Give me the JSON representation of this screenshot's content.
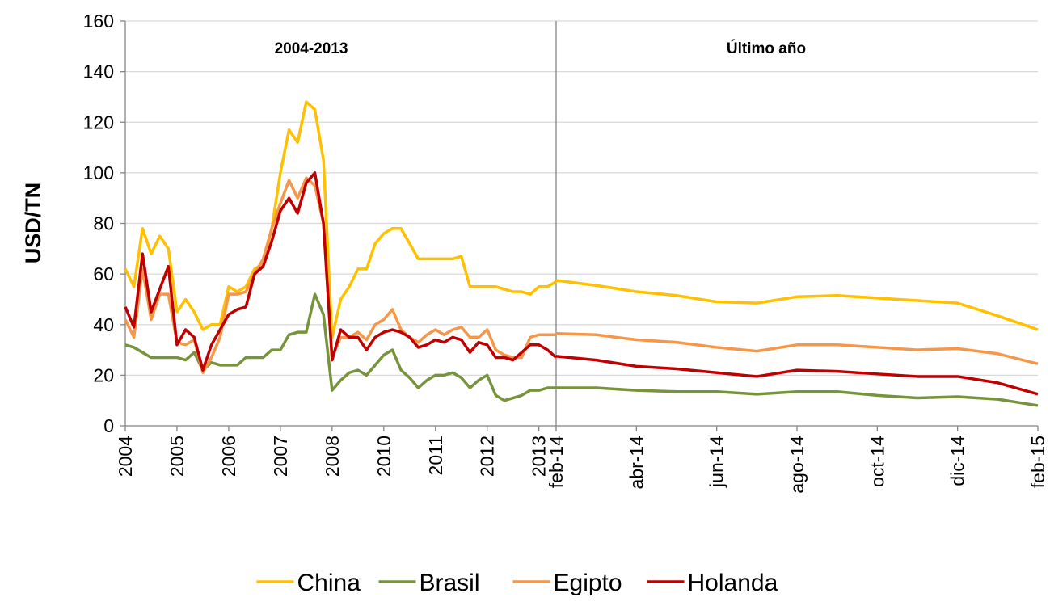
{
  "chart_data": [
    {
      "type": "line",
      "annotation": "2004-2013",
      "y_label": "USD/TN",
      "ylim": [
        0,
        160
      ],
      "yticks": [
        0,
        20,
        40,
        60,
        80,
        100,
        120,
        140,
        160
      ],
      "grid": true,
      "legend": "bottom",
      "categories": [
        "2004",
        null,
        null,
        null,
        null,
        null,
        "2005",
        null,
        null,
        null,
        null,
        null,
        "2006",
        null,
        null,
        null,
        null,
        null,
        "2007",
        null,
        null,
        null,
        null,
        null,
        "2008",
        null,
        null,
        null,
        null,
        null,
        "2010",
        null,
        null,
        null,
        null,
        null,
        "2011",
        null,
        null,
        null,
        null,
        null,
        "2012",
        null,
        null,
        null,
        null,
        null,
        "2013",
        null,
        null
      ],
      "series": [
        {
          "name": "China",
          "color": "#ffc000",
          "values": [
            62,
            55,
            78,
            68,
            75,
            70,
            45,
            50,
            45,
            38,
            40,
            40,
            55,
            53,
            55,
            62,
            64,
            78,
            100,
            117,
            112,
            128,
            125,
            105,
            35,
            50,
            55,
            62,
            62,
            72,
            76,
            78,
            78,
            72,
            66,
            66,
            66,
            66,
            66,
            67,
            55,
            55,
            55,
            55,
            54,
            53,
            53,
            52,
            55,
            55,
            57
          ]
        },
        {
          "name": "Brasil",
          "color": "#77933c",
          "values": [
            32,
            31,
            29,
            27,
            27,
            27,
            27,
            26,
            29,
            22,
            25,
            24,
            24,
            24,
            27,
            27,
            27,
            30,
            30,
            36,
            37,
            37,
            52,
            44,
            14,
            18,
            21,
            22,
            20,
            24,
            28,
            30,
            22,
            19,
            15,
            18,
            20,
            20,
            21,
            19,
            15,
            18,
            20,
            12,
            10,
            11,
            12,
            14,
            14,
            15,
            15
          ]
        },
        {
          "name": "Egipto",
          "color": "#f79646",
          "values": [
            42,
            35,
            62,
            42,
            52,
            52,
            33,
            32,
            34,
            21,
            27,
            35,
            52,
            52,
            53,
            60,
            66,
            78,
            88,
            97,
            90,
            98,
            95,
            80,
            27,
            35,
            35,
            37,
            34,
            40,
            42,
            46,
            38,
            35,
            33,
            36,
            38,
            36,
            38,
            39,
            35,
            35,
            38,
            30,
            28,
            27,
            27,
            35,
            36,
            36,
            36
          ]
        },
        {
          "name": "Holanda",
          "color": "#c00000",
          "values": [
            47,
            39,
            68,
            45,
            54,
            63,
            32,
            38,
            35,
            22,
            32,
            38,
            44,
            46,
            47,
            60,
            63,
            73,
            85,
            90,
            84,
            96,
            100,
            80,
            26,
            38,
            35,
            35,
            30,
            35,
            37,
            38,
            37,
            35,
            31,
            32,
            34,
            33,
            35,
            34,
            29,
            33,
            32,
            27,
            27,
            26,
            29,
            32,
            32,
            30,
            27
          ]
        }
      ]
    },
    {
      "type": "line",
      "annotation": "Último año",
      "ylim": [
        0,
        160
      ],
      "categories": [
        "feb-14",
        null,
        "abr-14",
        null,
        "jun-14",
        null,
        "ago-14",
        null,
        "oct-14",
        null,
        "dic-14",
        null,
        "feb-15"
      ],
      "series": [
        {
          "color": "#ffc000",
          "values": [
            57.5,
            55.5,
            53,
            51.5,
            49,
            48.5,
            51,
            51.5,
            50.5,
            49.5,
            48.5,
            43.5,
            38
          ]
        },
        {
          "color": "#77933c",
          "values": [
            15,
            15,
            14,
            13.5,
            13.5,
            12.5,
            13.5,
            13.5,
            12,
            11,
            11.5,
            10.5,
            8
          ]
        },
        {
          "color": "#f79646",
          "values": [
            36.5,
            36,
            34,
            33,
            31,
            29.5,
            32,
            32,
            31,
            30,
            30.5,
            28.5,
            24.5
          ]
        },
        {
          "color": "#c00000",
          "values": [
            27.5,
            26,
            23.5,
            22.5,
            21,
            19.5,
            22,
            21.5,
            20.5,
            19.5,
            19.5,
            17,
            12.5
          ]
        }
      ]
    }
  ]
}
